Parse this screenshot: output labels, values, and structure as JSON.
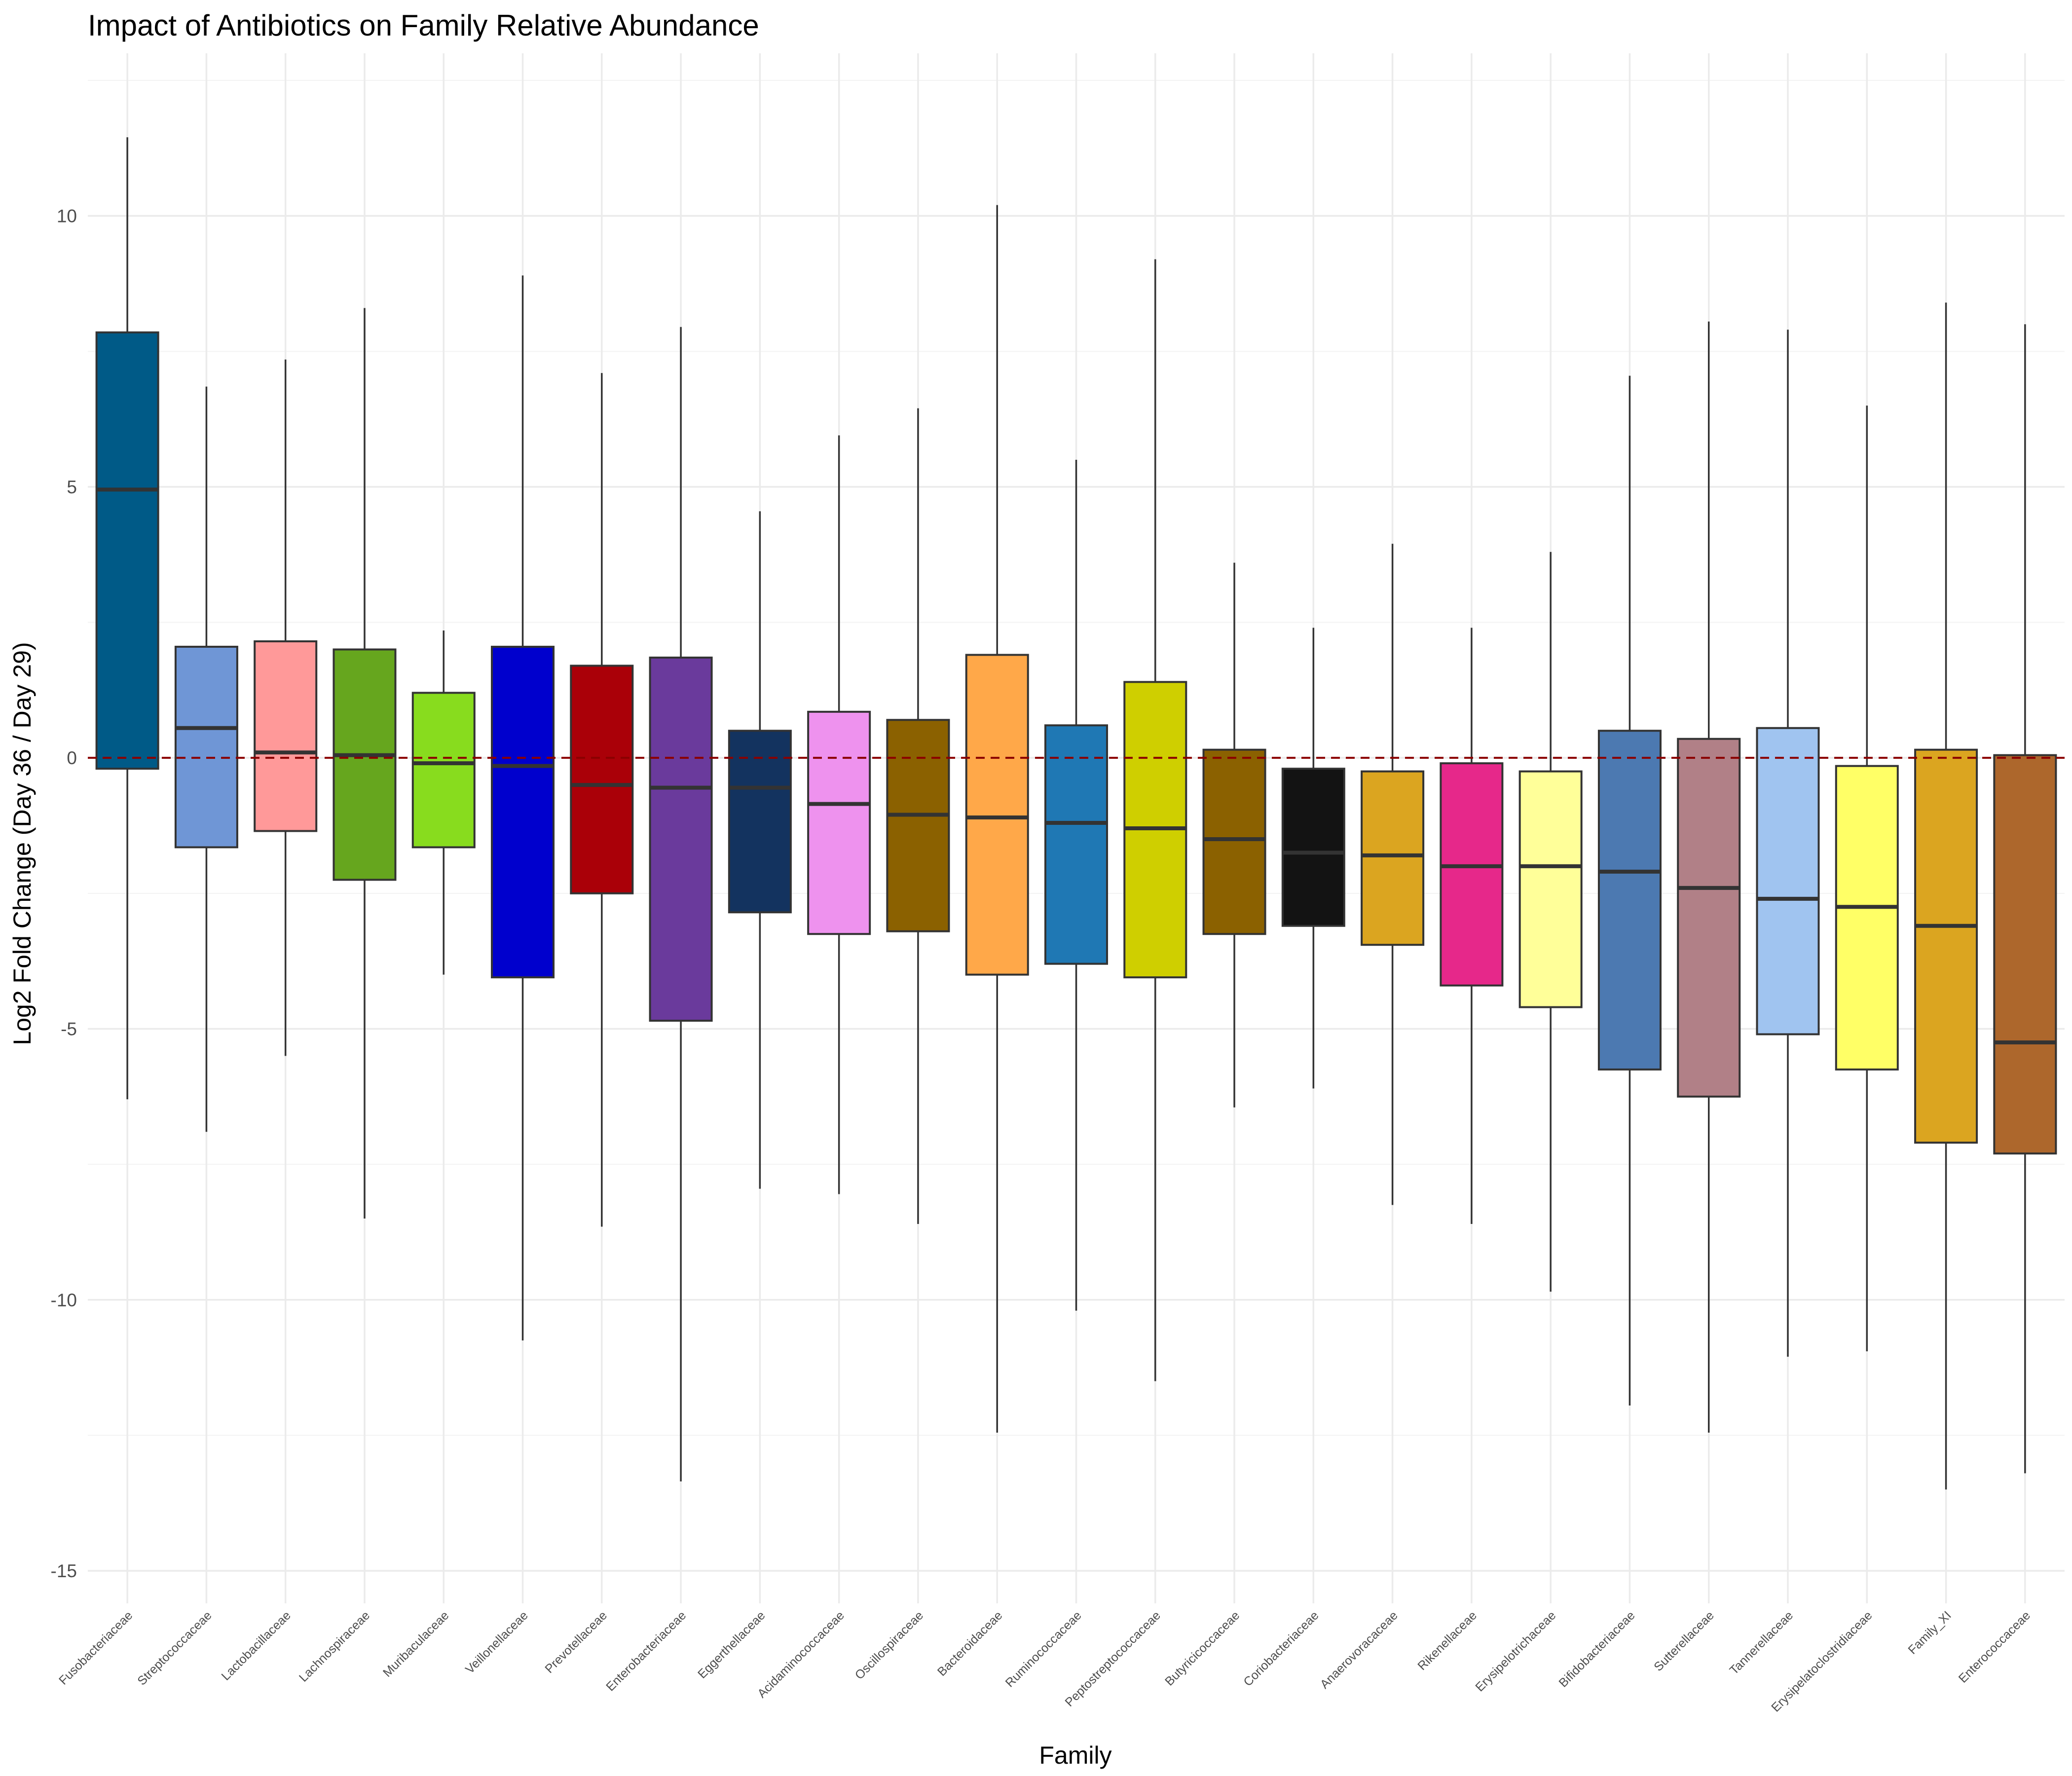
{
  "chart_data": {
    "type": "box",
    "title": "Impact of Antibiotics on Family Relative Abundance",
    "xlabel": "Family",
    "ylabel": "Log2 Fold Change (Day 36 / Day 29)",
    "ylim": [
      -15.6,
      13.0
    ],
    "yticks": [
      -15,
      -10,
      -5,
      0,
      5,
      10
    ],
    "reference_line": {
      "y": 0,
      "style": "dashed",
      "color": "#8b0000"
    },
    "grid": true,
    "legend": "none",
    "categories": [
      "Fusobacteriaceae",
      "Streptococcaceae",
      "Lactobacillaceae",
      "Lachnospiraceae",
      "Muribaculaceae",
      "Veillonellaceae",
      "Prevotellaceae",
      "Enterobacteriaceae",
      "Eggerthellaceae",
      "Acidaminococcaceae",
      "Oscillospiraceae",
      "Bacteroidaceae",
      "Ruminococcaceae",
      "Peptostreptococcaceae",
      "Butyricicoccaceae",
      "Coriobacteriaceae",
      "Anaerovoracaceae",
      "Rikenellaceae",
      "Erysipelotrichaceae",
      "Bifidobacteriaceae",
      "Sutterellaceae",
      "Tannerellaceae",
      "Erysipelatoclostridiaceae",
      "Family_XI",
      "Enterococcaceae"
    ],
    "boxes": [
      {
        "min": -6.3,
        "q1": -0.2,
        "median": 4.95,
        "q3": 7.85,
        "max": 11.45
      },
      {
        "min": -6.9,
        "q1": -1.65,
        "median": 0.55,
        "q3": 2.05,
        "max": 6.85
      },
      {
        "min": -5.5,
        "q1": -1.35,
        "median": 0.1,
        "q3": 2.15,
        "max": 7.35
      },
      {
        "min": -8.5,
        "q1": -2.25,
        "median": 0.05,
        "q3": 2.0,
        "max": 8.3
      },
      {
        "min": -4.0,
        "q1": -1.65,
        "median": -0.1,
        "q3": 1.2,
        "max": 2.35
      },
      {
        "min": -10.75,
        "q1": -4.05,
        "median": -0.15,
        "q3": 2.05,
        "max": 8.9
      },
      {
        "min": -8.65,
        "q1": -2.5,
        "median": -0.5,
        "q3": 1.7,
        "max": 7.1
      },
      {
        "min": -13.35,
        "q1": -4.85,
        "median": -0.55,
        "q3": 1.85,
        "max": 7.95
      },
      {
        "min": -7.95,
        "q1": -2.85,
        "median": -0.55,
        "q3": 0.5,
        "max": 4.55
      },
      {
        "min": -8.05,
        "q1": -3.25,
        "median": -0.85,
        "q3": 0.85,
        "max": 5.95
      },
      {
        "min": -8.6,
        "q1": -3.2,
        "median": -1.05,
        "q3": 0.7,
        "max": 6.45
      },
      {
        "min": -12.45,
        "q1": -4.0,
        "median": -1.1,
        "q3": 1.9,
        "max": 10.2
      },
      {
        "min": -10.2,
        "q1": -3.8,
        "median": -1.2,
        "q3": 0.6,
        "max": 5.5
      },
      {
        "min": -11.5,
        "q1": -4.05,
        "median": -1.3,
        "q3": 1.4,
        "max": 9.2
      },
      {
        "min": -6.45,
        "q1": -3.25,
        "median": -1.5,
        "q3": 0.15,
        "max": 3.6
      },
      {
        "min": -6.1,
        "q1": -3.1,
        "median": -1.75,
        "q3": -0.2,
        "max": 2.4
      },
      {
        "min": -8.25,
        "q1": -3.45,
        "median": -1.8,
        "q3": -0.25,
        "max": 3.95
      },
      {
        "min": -8.6,
        "q1": -4.2,
        "median": -2.0,
        "q3": -0.1,
        "max": 2.4
      },
      {
        "min": -9.85,
        "q1": -4.6,
        "median": -2.0,
        "q3": -0.25,
        "max": 3.8
      },
      {
        "min": -11.95,
        "q1": -5.75,
        "median": -2.1,
        "q3": 0.5,
        "max": 7.05
      },
      {
        "min": -12.45,
        "q1": -6.25,
        "median": -2.4,
        "q3": 0.35,
        "max": 8.05
      },
      {
        "min": -11.05,
        "q1": -5.1,
        "median": -2.6,
        "q3": 0.55,
        "max": 7.9
      },
      {
        "min": -10.95,
        "q1": -5.75,
        "median": -2.75,
        "q3": -0.15,
        "max": 6.5
      },
      {
        "min": -13.5,
        "q1": -7.1,
        "median": -3.1,
        "q3": 0.15,
        "max": 8.4
      },
      {
        "min": -13.2,
        "q1": -7.3,
        "median": -5.25,
        "q3": 0.05,
        "max": 8.0
      }
    ],
    "colors": [
      "#005A87",
      "#6F96D6",
      "#FF9999",
      "#66A61E",
      "#88DC1E",
      "#0000CD",
      "#AA0008",
      "#6A3A9C",
      "#13335F",
      "#EE92EE",
      "#8B6100",
      "#FFA849",
      "#1F78B4",
      "#CFCF00",
      "#8B6100",
      "#131313",
      "#DBA520",
      "#E6288A",
      "#FFFF99",
      "#4C79B1",
      "#B18087",
      "#A0C4F0",
      "#FFFF66",
      "#DBA520",
      "#AD672C"
    ]
  }
}
